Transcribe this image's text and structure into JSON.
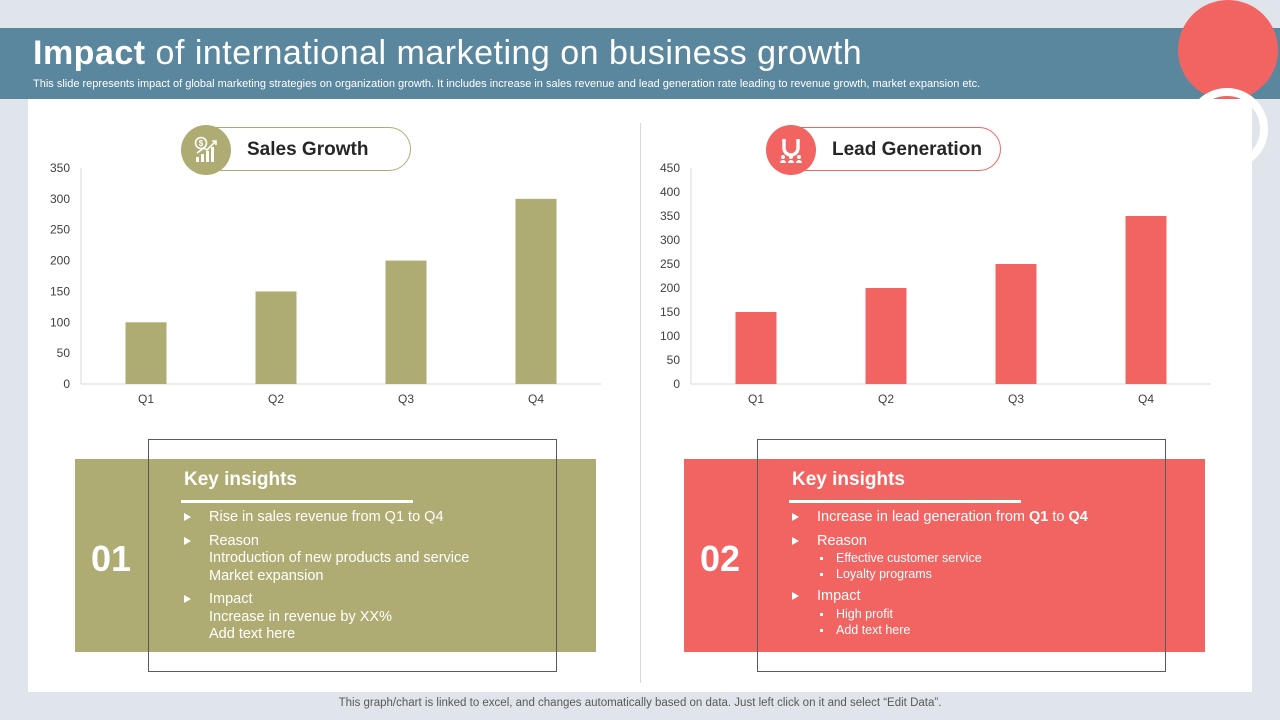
{
  "header": {
    "title_bold": "Impact",
    "title_rest": " of international marketing on business growth",
    "subtitle": "This slide represents impact of global marketing strategies on organization growth. It includes increase in sales revenue and lead generation rate leading to revenue growth, market expansion etc."
  },
  "colors": {
    "olive": "#afac73",
    "red": "#f26461",
    "header": "#5a879e"
  },
  "sales": {
    "title": "Sales Growth",
    "icon": "money-growth-chart-icon",
    "insights": {
      "number": "01",
      "heading": "Key insights",
      "items": [
        {
          "lines": [
            "Rise in sales revenue from Q1 to Q4"
          ]
        },
        {
          "lines": [
            "Reason",
            "Introduction of new products and service",
            "Market expansion"
          ]
        },
        {
          "lines": [
            "Impact",
            "Increase in revenue by XX%",
            "Add text here"
          ]
        }
      ]
    }
  },
  "leads": {
    "title": "Lead Generation",
    "icon": "magnet-people-icon",
    "insights": {
      "number": "02",
      "heading": "Key insights",
      "item1_prefix": "Increase in lead generation from ",
      "item1_q1": "Q1",
      "item1_to": " to ",
      "item1_q4": "Q4",
      "reason": "Reason",
      "reason_subs": [
        "Effective customer service",
        "Loyalty programs"
      ],
      "impact": "Impact",
      "impact_subs": [
        "High profit",
        "Add text here"
      ]
    }
  },
  "footer": "This graph/chart is linked to excel,  and changes automatically based on data. Just left click on it and select “Edit Data”.",
  "chart_data": [
    {
      "type": "bar",
      "title": "Sales Growth",
      "categories": [
        "Q1",
        "Q2",
        "Q3",
        "Q4"
      ],
      "values": [
        100,
        150,
        200,
        300
      ],
      "ylim": [
        0,
        350
      ],
      "yticks": [
        0,
        50,
        100,
        150,
        200,
        250,
        300,
        350
      ],
      "color": "#afac73",
      "grid": false
    },
    {
      "type": "bar",
      "title": "Lead Generation",
      "categories": [
        "Q1",
        "Q2",
        "Q3",
        "Q4"
      ],
      "values": [
        150,
        200,
        250,
        350
      ],
      "ylim": [
        0,
        450
      ],
      "yticks": [
        0,
        50,
        100,
        150,
        200,
        250,
        300,
        350,
        400,
        450
      ],
      "color": "#f26461",
      "grid": false
    }
  ]
}
